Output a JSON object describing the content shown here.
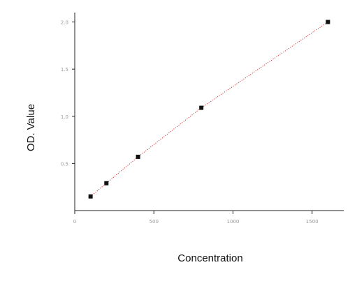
{
  "chart_data": {
    "type": "scatter",
    "title": "",
    "xlabel": "Concentration",
    "ylabel": "OD. Value",
    "xlim": [
      0,
      1700
    ],
    "ylim": [
      0,
      2.1
    ],
    "x_ticks": [
      0,
      500,
      1000,
      1500
    ],
    "x_tick_labels": [
      "0",
      "500",
      "1000",
      "1500"
    ],
    "y_ticks": [
      0.5,
      1.0,
      1.5,
      2.0
    ],
    "y_tick_labels": [
      "0.5",
      "1.0",
      "1.5",
      "2.0"
    ],
    "grid": false,
    "series": [
      {
        "points": [
          {
            "x": 100,
            "y": 0.15
          },
          {
            "x": 200,
            "y": 0.29
          },
          {
            "x": 400,
            "y": 0.57
          },
          {
            "x": 800,
            "y": 1.09
          },
          {
            "x": 1600,
            "y": 2.0
          }
        ],
        "marker_color": "#111111",
        "fit_line_color": "#cc2222"
      }
    ]
  }
}
